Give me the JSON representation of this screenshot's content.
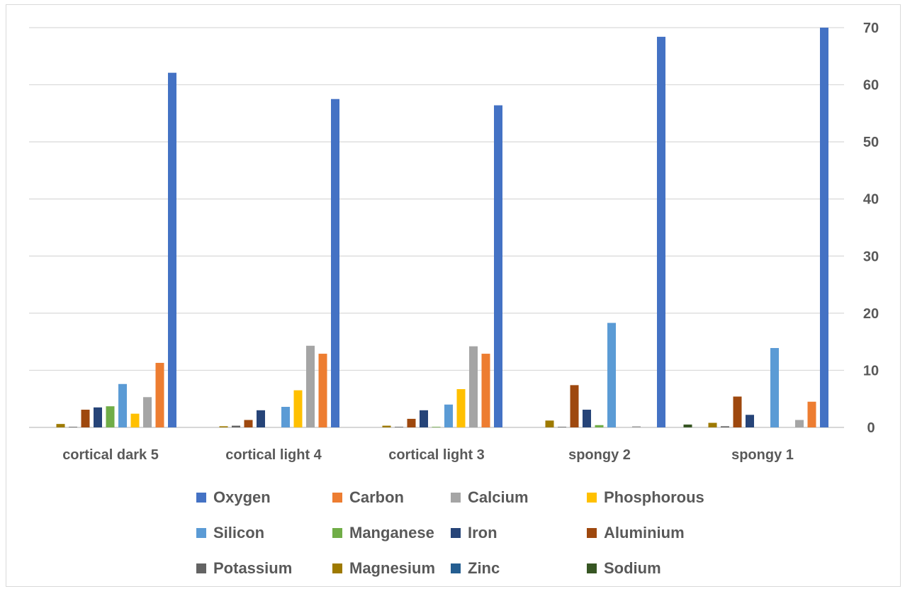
{
  "chart_data": {
    "type": "bar",
    "categories": [
      "cortical dark 5",
      "cortical light 4",
      "cortical light 3",
      "spongy 2",
      "spongy 1"
    ],
    "ylim": [
      0,
      70
    ],
    "yticks": [
      0,
      10,
      20,
      30,
      40,
      50,
      60,
      70
    ],
    "y_axis_side": "right",
    "grid": true,
    "legend_position": "bottom",
    "series": [
      {
        "name": "Sodium",
        "color": "#375623",
        "values": [
          0.0,
          0.0,
          0.0,
          0.0,
          0.5
        ]
      },
      {
        "name": "Zinc",
        "color": "#255e91",
        "values": [
          0.0,
          0.0,
          0.0,
          0.0,
          0.0
        ]
      },
      {
        "name": "Magnesium",
        "color": "#9e7a00",
        "values": [
          0.6,
          0.2,
          0.3,
          1.2,
          0.8
        ]
      },
      {
        "name": "Potassium",
        "color": "#636363",
        "values": [
          0.1,
          0.3,
          0.1,
          0.1,
          0.2
        ]
      },
      {
        "name": "Aluminium",
        "color": "#9e480e",
        "values": [
          3.1,
          1.3,
          1.5,
          7.4,
          5.4
        ]
      },
      {
        "name": "Iron",
        "color": "#264478",
        "values": [
          3.5,
          3.0,
          3.0,
          3.1,
          2.2
        ]
      },
      {
        "name": "Manganese",
        "color": "#70ad47",
        "values": [
          3.7,
          0.0,
          0.1,
          0.4,
          0.0
        ]
      },
      {
        "name": "Silicon",
        "color": "#5b9bd5",
        "values": [
          7.6,
          3.6,
          4.0,
          18.3,
          13.9
        ]
      },
      {
        "name": "Phosphorous",
        "color": "#ffc000",
        "values": [
          2.4,
          6.5,
          6.7,
          0.0,
          0.0
        ]
      },
      {
        "name": "Calcium",
        "color": "#a5a5a5",
        "values": [
          5.3,
          14.3,
          14.2,
          0.2,
          1.3
        ]
      },
      {
        "name": "Carbon",
        "color": "#ed7d31",
        "values": [
          11.3,
          12.9,
          12.9,
          0.0,
          4.5
        ]
      },
      {
        "name": "Oxygen",
        "color": "#4472c4",
        "values": [
          62.1,
          57.5,
          56.4,
          68.4,
          70.0
        ]
      }
    ],
    "legend_order": [
      "Oxygen",
      "Carbon",
      "Calcium",
      "Phosphorous",
      "Silicon",
      "Manganese",
      "Iron",
      "Aluminium",
      "Potassium",
      "Magnesium",
      "Zinc",
      "Sodium"
    ]
  }
}
